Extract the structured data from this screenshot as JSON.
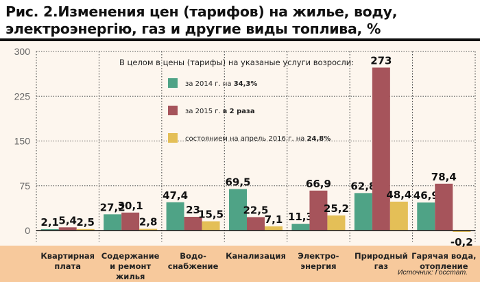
{
  "title": "Рис. 2.Изменения цен (тарифов) на жилье, воду, электроэнергію, газ и другие виды топлива, %",
  "source": "Источник: Госстат.",
  "colors": {
    "s2014": "#4fa386",
    "s2015": "#a6545b",
    "s2016": "#e4bf57"
  },
  "chart_data": {
    "type": "bar",
    "title": "Рис. 2.Изменения цен (тарифов) на жилье, воду, электроэнергію, газ и другие виды топлива, %",
    "ylim": [
      0,
      300
    ],
    "yticks": [
      "0",
      "75",
      "150",
      "225",
      "300"
    ],
    "grid": true,
    "legend_placement": "top-center",
    "legend_title": "В целом в цены (тарифы) на указаные услуги возросли:",
    "categories": [
      [
        "Квартирная",
        "плата"
      ],
      [
        "Содержание",
        "и ремонт",
        "жилья"
      ],
      [
        "Водо-",
        "снабжение"
      ],
      [
        "Канализация"
      ],
      [
        "Электро-",
        "энергия"
      ],
      [
        "Природный",
        "газ"
      ],
      [
        "Гарячая вода,",
        "отопление"
      ]
    ],
    "series": [
      {
        "name": "за 2014 г. на",
        "bold": "34,3%",
        "values": [
          2.1,
          27.2,
          47.4,
          69.5,
          11.3,
          62.8,
          46.9
        ],
        "labels": [
          "2,1",
          "27,2",
          "47,4",
          "69,5",
          "11,3",
          "62,8",
          "46,9"
        ]
      },
      {
        "name": "за 2015 г.",
        "bold": "в 2 раза",
        "values": [
          5.4,
          30.1,
          23,
          22.5,
          66.9,
          273,
          78.4
        ],
        "labels": [
          "5,4",
          "30,1",
          "23",
          "22,5",
          "66,9",
          "273",
          "78,4"
        ]
      },
      {
        "name": "состоянием на апрель 2016 г. на",
        "bold": "24,8%",
        "values": [
          2.5,
          2.8,
          15.5,
          7.1,
          25.2,
          48.4,
          -0.2
        ],
        "labels": [
          "2,5",
          "2,8",
          "15,5",
          "7,1",
          "25,2",
          "48,4",
          "-0,2"
        ]
      }
    ]
  }
}
